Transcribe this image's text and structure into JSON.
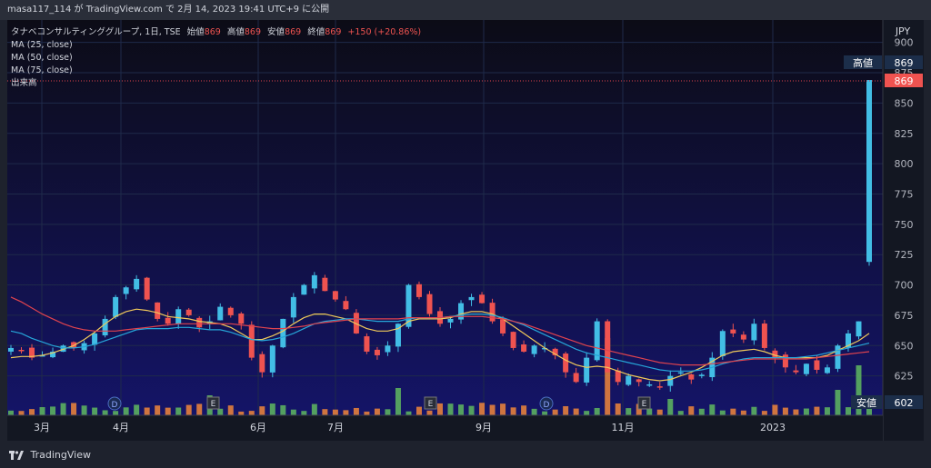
{
  "header": {
    "publish_line": "masa117_114 が TradingView.com で 2月 14, 2023 19:41 UTC+9 に公開"
  },
  "legend": {
    "title": "タナベコンサルティンググループ, 1日, TSE",
    "ohlc_labels": [
      "始値",
      "高値",
      "安値",
      "終値"
    ],
    "ohlc_values": [
      "869",
      "869",
      "869",
      "869"
    ],
    "change": "+150 (+20.86%)",
    "ma_lines": [
      "MA (25, close)",
      "MA (50, close)",
      "MA (75, close)"
    ],
    "volume_label": "出来高"
  },
  "axis": {
    "currency": "JPY",
    "price_ticks": [
      "900",
      "875",
      "850",
      "825",
      "800",
      "775",
      "750",
      "725",
      "700",
      "675",
      "650",
      "625"
    ],
    "time_labels": [
      "3月",
      "4月",
      "6月",
      "7月",
      "9月",
      "11月",
      "2023"
    ],
    "high_label": "高値",
    "high_value": "869",
    "last_value": "869",
    "low_label": "安値",
    "low_value": "602"
  },
  "events": [
    {
      "marker": "D"
    },
    {
      "marker": "E"
    },
    {
      "marker": "E"
    },
    {
      "marker": "D"
    },
    {
      "marker": "E"
    }
  ],
  "colors": {
    "background_top": "#0c0c16",
    "background_bottom": "#141467",
    "up": "#26a69a",
    "up_candle": "#42bde5",
    "down": "#ef5350",
    "ma25": "#f0c95a",
    "ma50": "#26a6d9",
    "ma75": "#e0434e",
    "vol_up": "#5fb85f",
    "vol_down": "#f0863a",
    "axis_bg": "#131722"
  },
  "footer": {
    "brand": "TradingView"
  },
  "chart_data": {
    "type": "candlestick",
    "ylim": [
      600,
      905
    ],
    "price_axis_ticks": [
      625,
      650,
      675,
      700,
      725,
      750,
      775,
      800,
      825,
      850,
      875,
      900
    ],
    "last_close": 869,
    "session_high": 869,
    "session_low": 602,
    "series": [
      {
        "name": "MA (25, close)"
      },
      {
        "name": "MA (50, close)"
      },
      {
        "name": "MA (75, close)"
      }
    ],
    "close_approx": [
      648,
      646,
      640,
      642,
      645,
      650,
      648,
      652,
      660,
      672,
      690,
      698,
      705,
      688,
      672,
      668,
      680,
      675,
      665,
      670,
      682,
      675,
      668,
      640,
      628,
      650,
      672,
      690,
      700,
      708,
      695,
      688,
      680,
      660,
      645,
      642,
      650,
      668,
      700,
      690,
      676,
      668,
      672,
      685,
      690,
      685,
      670,
      660,
      648,
      645,
      650,
      648,
      642,
      628,
      620,
      640,
      670,
      628,
      620,
      625,
      620,
      618,
      616,
      625,
      628,
      622,
      626,
      640,
      662,
      660,
      655,
      668,
      648,
      640,
      632,
      628,
      635,
      630,
      632,
      650,
      660,
      670,
      869
    ],
    "ma25_approx": [
      640,
      641,
      641,
      642,
      644,
      647,
      650,
      655,
      661,
      668,
      674,
      678,
      680,
      679,
      677,
      674,
      673,
      672,
      670,
      669,
      668,
      665,
      660,
      655,
      655,
      658,
      662,
      668,
      673,
      676,
      676,
      674,
      672,
      668,
      664,
      662,
      662,
      664,
      670,
      672,
      672,
      672,
      673,
      676,
      678,
      678,
      676,
      672,
      666,
      660,
      654,
      648,
      643,
      638,
      634,
      632,
      633,
      632,
      629,
      626,
      624,
      622,
      621,
      622,
      625,
      628,
      632,
      637,
      642,
      645,
      646,
      647,
      645,
      642,
      640,
      640,
      640,
      640,
      642,
      646,
      650,
      654,
      660
    ],
    "ma50_approx": [
      662,
      660,
      656,
      653,
      650,
      648,
      648,
      649,
      651,
      654,
      657,
      660,
      663,
      664,
      664,
      664,
      665,
      665,
      664,
      663,
      663,
      661,
      658,
      655,
      654,
      655,
      657,
      660,
      664,
      668,
      670,
      671,
      672,
      672,
      671,
      670,
      670,
      670,
      672,
      673,
      673,
      673,
      674,
      675,
      676,
      676,
      675,
      673,
      670,
      667,
      663,
      659,
      655,
      651,
      647,
      644,
      642,
      640,
      638,
      636,
      634,
      632,
      630,
      629,
      629,
      629,
      630,
      632,
      635,
      637,
      639,
      640,
      640,
      640,
      640,
      640,
      641,
      642,
      644,
      646,
      648,
      650,
      652
    ],
    "ma75_approx": [
      690,
      686,
      681,
      676,
      672,
      668,
      665,
      663,
      662,
      662,
      662,
      663,
      664,
      665,
      666,
      667,
      668,
      668,
      668,
      668,
      668,
      668,
      667,
      666,
      665,
      664,
      664,
      665,
      666,
      668,
      669,
      670,
      671,
      672,
      672,
      672,
      672,
      672,
      673,
      673,
      673,
      673,
      674,
      674,
      674,
      674,
      673,
      672,
      670,
      668,
      665,
      662,
      659,
      656,
      653,
      650,
      648,
      646,
      644,
      642,
      640,
      638,
      636,
      635,
      634,
      634,
      634,
      635,
      636,
      637,
      638,
      639,
      639,
      639,
      639,
      639,
      639,
      640,
      641,
      642,
      643,
      644,
      645
    ]
  }
}
